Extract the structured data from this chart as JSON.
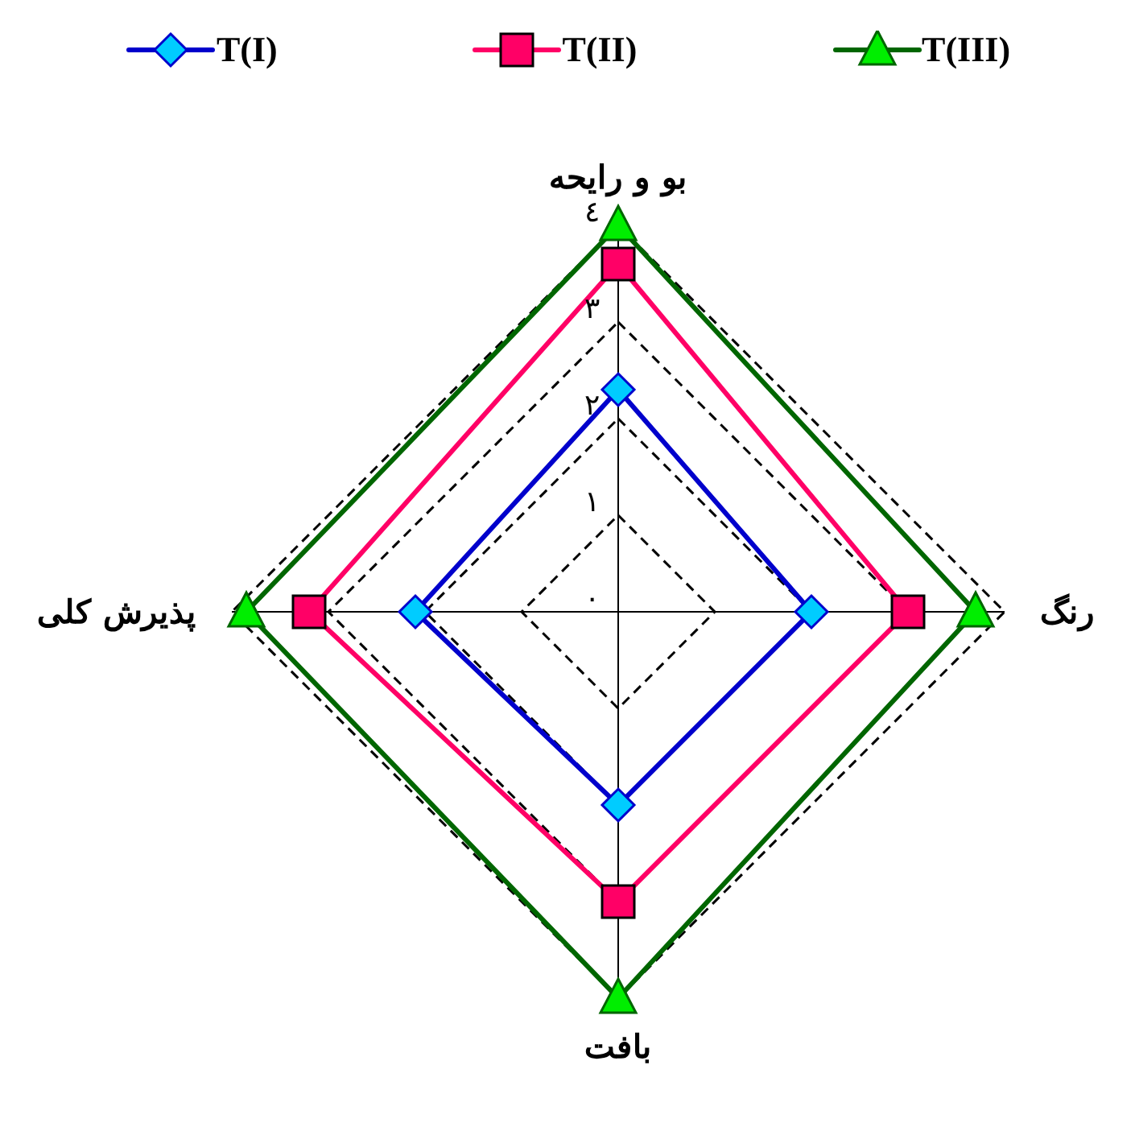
{
  "chart_data": {
    "type": "radar",
    "categories": [
      "بو و رایحه",
      "رنگ",
      "بافت",
      "پذیرش کلی"
    ],
    "series": [
      {
        "name": "T(I)",
        "color": "#0000cc",
        "marker": "diamond",
        "values": [
          2.3,
          2.0,
          2.0,
          2.1
        ]
      },
      {
        "name": "T(II)",
        "color": "#ff0066",
        "marker": "square",
        "values": [
          3.6,
          3.0,
          3.0,
          3.2
        ]
      },
      {
        "name": "T(III)",
        "color": "#006600",
        "marker": "triangle",
        "values": [
          4.0,
          3.7,
          4.0,
          3.85
        ]
      }
    ],
    "ylim": [
      0,
      4
    ],
    "yticks": [
      {
        "value": 0,
        "label": "٠"
      },
      {
        "value": 1,
        "label": "۱"
      },
      {
        "value": 2,
        "label": "۲"
      },
      {
        "value": 3,
        "label": "۳"
      },
      {
        "value": 4,
        "label": "٤"
      }
    ],
    "grid": true,
    "legend": "top",
    "line_style": "solid"
  }
}
